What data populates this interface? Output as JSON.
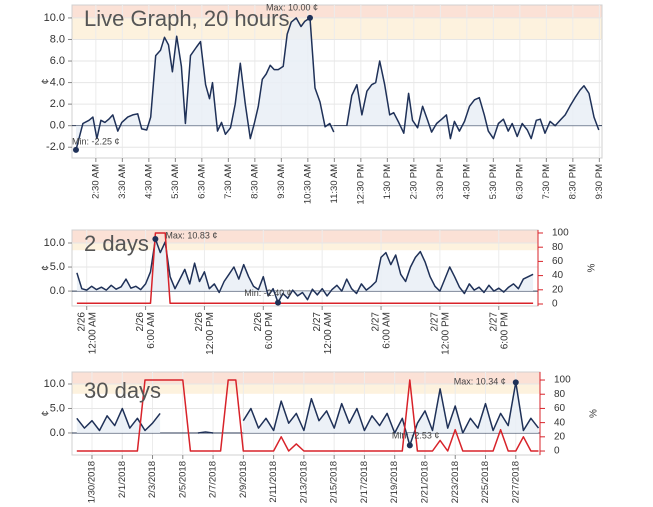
{
  "chart_data": [
    {
      "type": "line",
      "title": "Live Graph, 20 hours",
      "ylabel": "¢",
      "xlim": [
        1.6,
        21.6
      ],
      "ylim": [
        -3,
        11.2
      ],
      "grid": true,
      "xticks": [
        {
          "value": 2.5,
          "label": "2:30 AM"
        },
        {
          "value": 3.5,
          "label": "3:30 AM"
        },
        {
          "value": 4.5,
          "label": "4:30 AM"
        },
        {
          "value": 5.5,
          "label": "5:30 AM"
        },
        {
          "value": 6.5,
          "label": "6:30 AM"
        },
        {
          "value": 7.5,
          "label": "7:30 AM"
        },
        {
          "value": 8.5,
          "label": "8:30 AM"
        },
        {
          "value": 9.5,
          "label": "9:30 AM"
        },
        {
          "value": 10.5,
          "label": "10:30 AM"
        },
        {
          "value": 11.5,
          "label": "11:30 AM"
        },
        {
          "value": 12.5,
          "label": "12:30 PM"
        },
        {
          "value": 13.5,
          "label": "1:30 PM"
        },
        {
          "value": 14.5,
          "label": "2:30 PM"
        },
        {
          "value": 15.5,
          "label": "3:30 PM"
        },
        {
          "value": 16.5,
          "label": "4:30 PM"
        },
        {
          "value": 17.5,
          "label": "5:30 PM"
        },
        {
          "value": 18.5,
          "label": "6:30 PM"
        },
        {
          "value": 19.5,
          "label": "7:30 PM"
        },
        {
          "value": 20.5,
          "label": "8:30 PM"
        },
        {
          "value": 21.5,
          "label": "9:30 PM"
        }
      ],
      "yticks": [
        {
          "value": -2,
          "label": "-2.0"
        },
        {
          "value": 0,
          "label": "0.0"
        },
        {
          "value": 2,
          "label": "2.0"
        },
        {
          "value": 4,
          "label": "4.0"
        },
        {
          "value": 6,
          "label": "6.0"
        },
        {
          "value": 8,
          "label": "8.0"
        },
        {
          "value": 10,
          "label": "10.0"
        }
      ],
      "bands": [
        {
          "range": [
            8,
            10
          ],
          "color": "#fdf2de"
        },
        {
          "range": [
            10,
            11.2
          ],
          "color": "#fbe1d6"
        }
      ],
      "max": {
        "label": "Max: 10.00 ¢",
        "x": 10.58,
        "y": 10.0
      },
      "min": {
        "label": "Min: -2.25 ¢",
        "x": 1.75,
        "y": -2.25
      },
      "x": [
        1.75,
        2.01,
        2.24,
        2.39,
        2.54,
        2.69,
        2.84,
        2.99,
        3.14,
        3.33,
        3.48,
        3.7,
        3.89,
        4.08,
        4.23,
        4.42,
        4.57,
        4.76,
        4.94,
        5.09,
        5.24,
        5.39,
        5.55,
        5.73,
        5.88,
        6.07,
        6.3,
        6.45,
        6.64,
        6.79,
        6.9,
        7.09,
        7.24,
        7.39,
        7.58,
        7.76,
        7.95,
        8.14,
        8.33,
        8.48,
        8.63,
        8.78,
        8.93,
        9.08,
        9.23,
        9.38,
        9.57,
        9.72,
        9.87,
        10.06,
        10.24,
        10.39,
        10.58,
        10.77,
        10.96,
        11.15,
        11.33,
        11.48,
        11.7,
        11.97,
        12.16,
        12.35,
        12.54,
        12.73,
        12.91,
        13.06,
        13.21,
        13.4,
        13.59,
        13.74,
        13.93,
        14.12,
        14.3,
        14.45,
        14.64,
        14.83,
        15.02,
        15.17,
        15.36,
        15.55,
        15.73,
        15.88,
        16.03,
        16.22,
        16.41,
        16.6,
        16.79,
        16.97,
        17.16,
        17.31,
        17.5,
        17.69,
        17.88,
        18.06,
        18.21,
        18.4,
        18.59,
        18.78,
        18.93,
        19.12,
        19.27,
        19.45,
        19.64,
        19.83,
        20.02,
        20.21,
        20.39,
        20.58,
        20.77,
        20.92,
        21.11,
        21.3,
        21.48
      ],
      "series": [
        {
          "color": "#1f3158",
          "area": "#e9eef6",
          "values": [
            -2.25,
            0.2,
            0.5,
            0.8,
            -1.2,
            0.5,
            0.3,
            0.6,
            1.0,
            -0.5,
            0.3,
            0.8,
            1.0,
            1.1,
            -0.3,
            -0.4,
            0.8,
            6.5,
            7.0,
            8.2,
            7.5,
            5.0,
            8.3,
            5.5,
            0.2,
            6.5,
            7.3,
            7.8,
            3.8,
            2.5,
            4.0,
            -0.5,
            0.3,
            -0.8,
            -0.2,
            2.0,
            5.8,
            2.0,
            -1.2,
            0.2,
            1.8,
            4.3,
            4.8,
            5.6,
            5.2,
            5.2,
            5.5,
            8.5,
            9.6,
            10.0,
            9.2,
            9.7,
            10.0,
            3.5,
            2.2,
            -0.1,
            0.2,
            -0.6,
            null,
            0.0,
            2.8,
            3.8,
            1.0,
            3.2,
            3.8,
            4.0,
            6.0,
            3.8,
            1.0,
            1.2,
            0.3,
            -0.7,
            3.0,
            0.5,
            -0.2,
            1.8,
            0.5,
            -0.6,
            0.2,
            0.6,
            1.0,
            -1.2,
            0.4,
            -0.5,
            0.4,
            1.8,
            2.4,
            2.6,
            1.0,
            -0.5,
            -1.2,
            0.2,
            0.6,
            -0.5,
            0.2,
            -1.0,
            0.2,
            -0.4,
            -1.2,
            0.5,
            0.6,
            -0.7,
            0.4,
            0.0,
            0.5,
            1.0,
            1.8,
            2.6,
            3.3,
            3.7,
            3.0,
            0.8,
            -0.4
          ]
        }
      ]
    },
    {
      "type": "line",
      "title": "2 days",
      "ylabel": "¢",
      "y2label": "%",
      "xlim": [
        -1.5,
        46
      ],
      "ylim": [
        -3.1,
        12.7
      ],
      "y2lim": [
        -2.8,
        104.2
      ],
      "grid": true,
      "xticks": [
        {
          "value": 0,
          "date": "2/26",
          "label": "12:00 AM"
        },
        {
          "value": 6,
          "date": "2/26",
          "label": "6:00 AM"
        },
        {
          "value": 12,
          "date": "2/26",
          "label": "12:00 PM"
        },
        {
          "value": 18,
          "date": "2/26",
          "label": "6:00 PM"
        },
        {
          "value": 24,
          "date": "2/27",
          "label": "12:00 AM"
        },
        {
          "value": 30,
          "date": "2/27",
          "label": "6:00 AM"
        },
        {
          "value": 36,
          "date": "2/27",
          "label": "12:00 PM"
        },
        {
          "value": 42,
          "date": "2/27",
          "label": "6:00 PM"
        }
      ],
      "yticks": [
        {
          "value": 0,
          "label": "0.0"
        },
        {
          "value": 5,
          "label": "5.0"
        },
        {
          "value": 10,
          "label": "10.0"
        }
      ],
      "y2ticks": [
        0,
        20,
        40,
        60,
        80,
        100
      ],
      "bands": [
        {
          "range": [
            8.5,
            10
          ],
          "color": "#fdf2de"
        },
        {
          "range": [
            10,
            12.7
          ],
          "color": "#fbe1d6"
        }
      ],
      "max": {
        "label": "Max: 10.83 ¢",
        "x": 7,
        "y": 10.83
      },
      "min": {
        "label": "Min: -2.40 ¢",
        "x": 19.5,
        "y": -2.4
      },
      "x": [
        -1,
        -0.5,
        0,
        0.5,
        1,
        1.5,
        2,
        2.5,
        3,
        3.5,
        4,
        4.5,
        5,
        5.5,
        6,
        6.5,
        7,
        7.5,
        8,
        8.5,
        9,
        9.5,
        10,
        10.5,
        11,
        11.5,
        12,
        12.5,
        13,
        13.5,
        14,
        14.5,
        15,
        15.5,
        16,
        16.5,
        17,
        17.5,
        18,
        18.5,
        19,
        19.5,
        20,
        20.5,
        21,
        21.5,
        22,
        22.5,
        23,
        23.5,
        24,
        24.5,
        25,
        25.5,
        26,
        26.5,
        27,
        27.5,
        28,
        28.5,
        29,
        29.5,
        30,
        30.5,
        31,
        31.5,
        32,
        32.5,
        33,
        33.5,
        34,
        34.5,
        35,
        35.5,
        36,
        36.5,
        37,
        37.5,
        38,
        38.5,
        39,
        39.5,
        40,
        40.5,
        41,
        41.5,
        42,
        42.5,
        43,
        43.5,
        44,
        44.5,
        45,
        45.5
      ],
      "series": [
        {
          "color": "#1f3158",
          "area": "#e9eef6",
          "values": [
            3.8,
            0.5,
            0.2,
            1.0,
            0.3,
            0.8,
            0.2,
            1.2,
            0.4,
            0.9,
            2.5,
            0.6,
            1.0,
            0.3,
            1.5,
            4.0,
            10.83,
            8.0,
            10.2,
            3.0,
            0.5,
            2.5,
            4.5,
            1.5,
            5.8,
            2.0,
            4.0,
            0.5,
            1.5,
            -0.3,
            2.0,
            3.5,
            5.0,
            2.5,
            5.5,
            3.0,
            1.0,
            0.3,
            3.0,
            -1.0,
            0.5,
            -2.4,
            -0.5,
            -1.5,
            0.2,
            -1.0,
            -0.3,
            -1.8,
            0.4,
            -0.8,
            0.5,
            -1.0,
            0.3,
            1.2,
            0.0,
            2.5,
            0.5,
            -0.5,
            1.5,
            0.2,
            1.0,
            2.0,
            7.0,
            8.0,
            5.5,
            7.5,
            3.5,
            2.0,
            5.0,
            7.0,
            8.2,
            6.0,
            3.0,
            1.0,
            0.0,
            2.5,
            5.0,
            3.0,
            0.8,
            -0.5,
            1.5,
            0.2,
            0.8,
            -0.3,
            1.2,
            0.0,
            0.6,
            -0.2,
            0.8,
            1.5,
            0.5,
            2.5,
            3.0,
            3.5
          ]
        },
        {
          "color": "#d8232a",
          "axis": "y2",
          "values": [
            1,
            1,
            1,
            1,
            1,
            1,
            1,
            1,
            1,
            1,
            1,
            1,
            1,
            1,
            1,
            1,
            100,
            100,
            100,
            1,
            1,
            1,
            1,
            1,
            1,
            1,
            1,
            1,
            1,
            1,
            1,
            1,
            1,
            1,
            1,
            1,
            1,
            1,
            1,
            1,
            1,
            1,
            1,
            1,
            1,
            1,
            1,
            1,
            1,
            1,
            1,
            1,
            1,
            1,
            1,
            1,
            1,
            1,
            1,
            1,
            1,
            1,
            1,
            1,
            1,
            1,
            1,
            1,
            1,
            1,
            1,
            1,
            1,
            1,
            1,
            1,
            1,
            1,
            1,
            1,
            1,
            1,
            1,
            1,
            1,
            1,
            1,
            1,
            1,
            1,
            1,
            1,
            1,
            1
          ]
        }
      ]
    },
    {
      "type": "line",
      "title": "30 days",
      "ylabel": "¢",
      "y2label": "%",
      "xlim": [
        -1.32,
        29.6
      ],
      "ylim": [
        -4.5,
        12.45
      ],
      "y2lim": [
        -5.6,
        111.3
      ],
      "grid": true,
      "xticks": [
        {
          "value": 0,
          "label": "1/30/2018"
        },
        {
          "value": 2,
          "label": "2/1/2018"
        },
        {
          "value": 4,
          "label": "2/3/2018"
        },
        {
          "value": 6,
          "label": "2/5/2018"
        },
        {
          "value": 8,
          "label": "2/7/2018"
        },
        {
          "value": 10,
          "label": "2/9/2018"
        },
        {
          "value": 12,
          "label": "2/11/2018"
        },
        {
          "value": 14,
          "label": "2/13/2018"
        },
        {
          "value": 16,
          "label": "2/15/2018"
        },
        {
          "value": 18,
          "label": "2/17/2018"
        },
        {
          "value": 20,
          "label": "2/19/2018"
        },
        {
          "value": 22,
          "label": "2/21/2018"
        },
        {
          "value": 24,
          "label": "2/23/2018"
        },
        {
          "value": 26,
          "label": "2/25/2018"
        },
        {
          "value": 28,
          "label": "2/27/2018"
        }
      ],
      "yticks": [
        {
          "value": 0,
          "label": "0.0"
        },
        {
          "value": 5,
          "label": "5.0"
        },
        {
          "value": 10,
          "label": "10.0"
        }
      ],
      "y2ticks": [
        0,
        20,
        40,
        60,
        80,
        100
      ],
      "bands": [
        {
          "range": [
            8,
            10
          ],
          "color": "#fdf2de"
        },
        {
          "range": [
            10,
            12.45
          ],
          "color": "#fbe1d6"
        }
      ],
      "max": {
        "label": "Max: 10.34 ¢",
        "x": 28,
        "y": 10.34
      },
      "min": {
        "label": "Min: -2.53 ¢",
        "x": 21,
        "y": -2.53
      },
      "x": [
        -1,
        -0.5,
        0,
        0.5,
        1,
        1.5,
        2,
        2.5,
        3,
        3.5,
        4,
        4.5,
        5,
        5.5,
        6,
        6.5,
        7,
        7.5,
        8,
        8.5,
        9,
        9.5,
        10,
        10.5,
        11,
        11.5,
        12,
        12.5,
        13,
        13.5,
        14,
        14.5,
        15,
        15.5,
        16,
        16.5,
        17,
        17.5,
        18,
        18.5,
        19,
        19.5,
        20,
        20.5,
        21,
        21.5,
        22,
        22.5,
        23,
        23.5,
        24,
        24.5,
        25,
        25.5,
        26,
        26.5,
        27,
        27.5,
        28,
        28.5,
        29,
        29.5
      ],
      "series": [
        {
          "color": "#1f3158",
          "area": "#e9eef6",
          "values": [
            3.0,
            1.0,
            2.5,
            0.5,
            3.5,
            1.5,
            5.0,
            1.0,
            3.0,
            0.5,
            2.0,
            4.0,
            null,
            null,
            null,
            null,
            0.0,
            0.2,
            0.0,
            null,
            null,
            null,
            2.5,
            5.0,
            1.0,
            3.0,
            0.5,
            6.5,
            2.0,
            4.0,
            0.5,
            7.0,
            2.5,
            4.5,
            1.0,
            6.0,
            2.0,
            5.0,
            0.5,
            3.5,
            1.5,
            4.0,
            0.0,
            3.0,
            -2.53,
            2.0,
            4.5,
            0.5,
            9.0,
            1.0,
            5.5,
            0.0,
            3.0,
            1.0,
            6.0,
            0.5,
            4.0,
            1.5,
            10.34,
            0.5,
            3.0,
            1.0
          ]
        },
        {
          "color": "#d8232a",
          "axis": "y2",
          "values": [
            0,
            0,
            0,
            0,
            0,
            0,
            0,
            0,
            0,
            100,
            100,
            100,
            100,
            100,
            100,
            0,
            0,
            0,
            0,
            0,
            100,
            100,
            0,
            0,
            0,
            0,
            0,
            20,
            0,
            10,
            0,
            0,
            0,
            0,
            0,
            0,
            0,
            0,
            0,
            0,
            0,
            0,
            0,
            0,
            100,
            0,
            0,
            0,
            15,
            0,
            30,
            0,
            0,
            0,
            0,
            0,
            30,
            0,
            0,
            20,
            0,
            0
          ]
        }
      ]
    }
  ]
}
